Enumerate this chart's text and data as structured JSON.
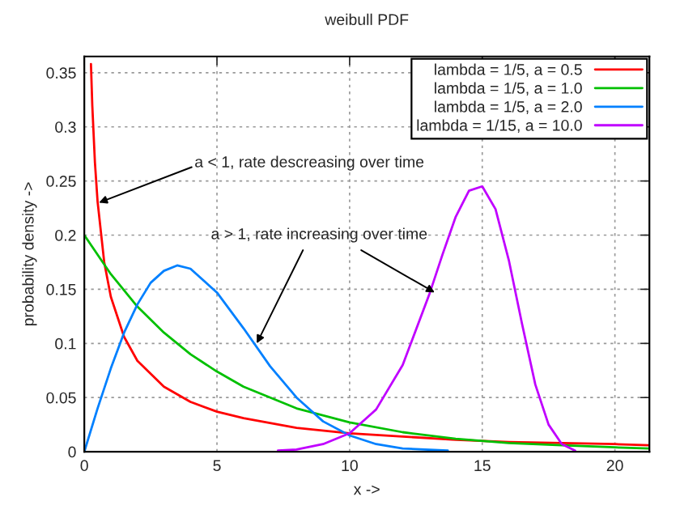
{
  "chart_data": {
    "type": "line",
    "title": "weibull PDF",
    "xlabel": "x ->",
    "ylabel": "probability density ->",
    "xlim": [
      0,
      21.3
    ],
    "ylim": [
      0,
      0.365
    ],
    "xticks": [
      0,
      5,
      10,
      15,
      20
    ],
    "yticks": [
      0,
      0.05,
      0.1,
      0.15,
      0.2,
      0.25,
      0.3,
      0.35
    ],
    "grid": true,
    "legend": "top right",
    "marker": "none",
    "line_style": "solid",
    "series": [
      {
        "name": "lambda = 1/5, a = 0.5",
        "color": "#ff0000",
        "x": [
          0.25,
          0.3,
          0.4,
          0.5,
          0.75,
          1,
          1.5,
          2,
          3,
          4,
          5,
          6,
          8,
          10,
          12,
          14,
          16,
          18,
          20,
          21.3
        ],
        "values": [
          0.358,
          0.32,
          0.267,
          0.231,
          0.175,
          0.143,
          0.106,
          0.084,
          0.06,
          0.046,
          0.037,
          0.031,
          0.022,
          0.017,
          0.014,
          0.011,
          0.009,
          0.008,
          0.007,
          0.006
        ]
      },
      {
        "name": "lambda = 1/5, a = 1.0",
        "color": "#00c000",
        "x": [
          0,
          1,
          2,
          3,
          4,
          5,
          6,
          8,
          10,
          12,
          14,
          16,
          18,
          20,
          21.3
        ],
        "values": [
          0.2,
          0.164,
          0.134,
          0.11,
          0.09,
          0.074,
          0.06,
          0.04,
          0.027,
          0.018,
          0.012,
          0.008,
          0.006,
          0.004,
          0.003
        ]
      },
      {
        "name": "lambda = 1/5, a = 2.0",
        "color": "#0080ff",
        "x": [
          0,
          0.5,
          1,
          1.5,
          2,
          2.5,
          3,
          3.5,
          4,
          5,
          6,
          7,
          8,
          9,
          10,
          11,
          12,
          13.7
        ],
        "values": [
          0,
          0.04,
          0.077,
          0.11,
          0.136,
          0.156,
          0.167,
          0.172,
          0.169,
          0.147,
          0.114,
          0.079,
          0.05,
          0.028,
          0.015,
          0.007,
          0.003,
          0.001
        ]
      },
      {
        "name": "lambda = 1/15, a = 10.0",
        "color": "#c000ff",
        "x": [
          7.3,
          8,
          9,
          10,
          11,
          12,
          13,
          13.5,
          14,
          14.5,
          15,
          15.5,
          16,
          16.5,
          17,
          17.5,
          18,
          18.5
        ],
        "values": [
          0.001,
          0.002,
          0.007,
          0.017,
          0.039,
          0.08,
          0.145,
          0.182,
          0.217,
          0.241,
          0.245,
          0.224,
          0.177,
          0.118,
          0.062,
          0.025,
          0.007,
          0.001
        ]
      }
    ],
    "annotations": [
      {
        "text": "a < 1, rate descreasing over time",
        "x": 0.55,
        "y": 0.23
      },
      {
        "text": "a > 1, rate increasing over time",
        "x": 6.5,
        "y": 0.1
      }
    ]
  }
}
